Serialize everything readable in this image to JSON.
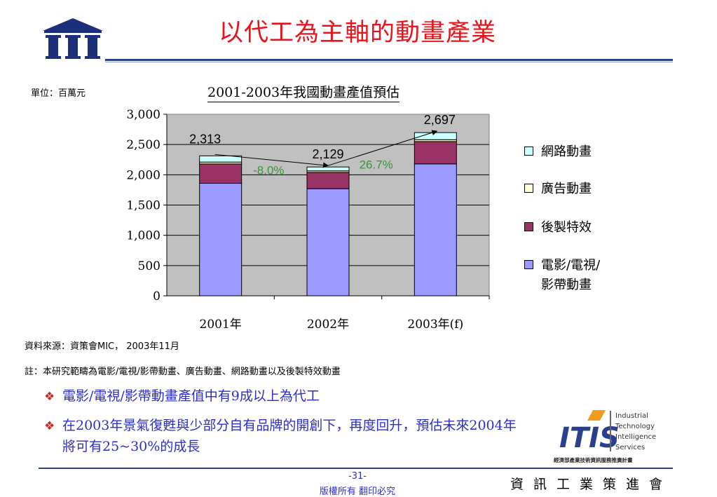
{
  "header": {
    "title": "以代工為主軸的動畫產業"
  },
  "chart_data": {
    "type": "bar",
    "stacked": true,
    "title": "2001-2003年我國動畫產值預估",
    "unit_label": "單位：百萬元",
    "categories": [
      "2001年",
      "2002年",
      "2003年(f)"
    ],
    "series": [
      {
        "name": "電影/電視/影帶動畫",
        "values": [
          1860,
          1770,
          2180
        ],
        "color": "#9999ff"
      },
      {
        "name": "後製特效",
        "values": [
          320,
          270,
          370
        ],
        "color": "#993366"
      },
      {
        "name": "廣告動畫",
        "values": [
          30,
          25,
          30
        ],
        "color": "#ffffcc"
      },
      {
        "name": "網路動畫",
        "values": [
          103,
          64,
          117
        ],
        "color": "#ccffff"
      }
    ],
    "totals": [
      "2,313",
      "2,129",
      "2,697"
    ],
    "growth_labels": [
      "-8.0%",
      "26.7%"
    ],
    "growth_color": "#339933",
    "plot_background": "#c0c0c0",
    "ylim": [
      0,
      3000
    ],
    "yticks": [
      "0",
      "500",
      "1,000",
      "1,500",
      "2,000",
      "2,500",
      "3,000"
    ],
    "grid": true,
    "legend_position": "right",
    "legend": [
      "網路動畫",
      "廣告動畫",
      "後製特效",
      "電影/電視/影帶動畫"
    ]
  },
  "legend_lines": {
    "item3_line1": "電影/電視/",
    "item3_line2": "影帶動畫"
  },
  "notes": {
    "source": "資料來源：資策會MIC， 2003年11月",
    "scope": "註：本研究範疇為電影/電視/影帶動畫、廣告動畫、網路動畫以及後製特效動畫"
  },
  "bullets": [
    {
      "symbol": "❖",
      "text": "電影/電視/影帶動畫產值中有9成以上為代工"
    },
    {
      "symbol": "❖",
      "line1": "在2003年景氣復甦與少部分自有品牌的開創下，再度回升，預估未來2004年",
      "line2": "將可有25~30%的成長"
    }
  ],
  "footer": {
    "page_number": "-31-",
    "copyright": "版權所有  翻印必究",
    "org_name": "資訊工業策進會"
  },
  "its_logo": {
    "mark": "ITIS",
    "lines": [
      "Industrial",
      "Technology",
      "Intelligence",
      "Services"
    ],
    "caption": "經濟部產業技術資訊服務推廣計畫"
  },
  "colors": {
    "title_red": "#e8141c",
    "bullet_blue": "#2b2ec8",
    "navy": "#2b3f8f"
  }
}
